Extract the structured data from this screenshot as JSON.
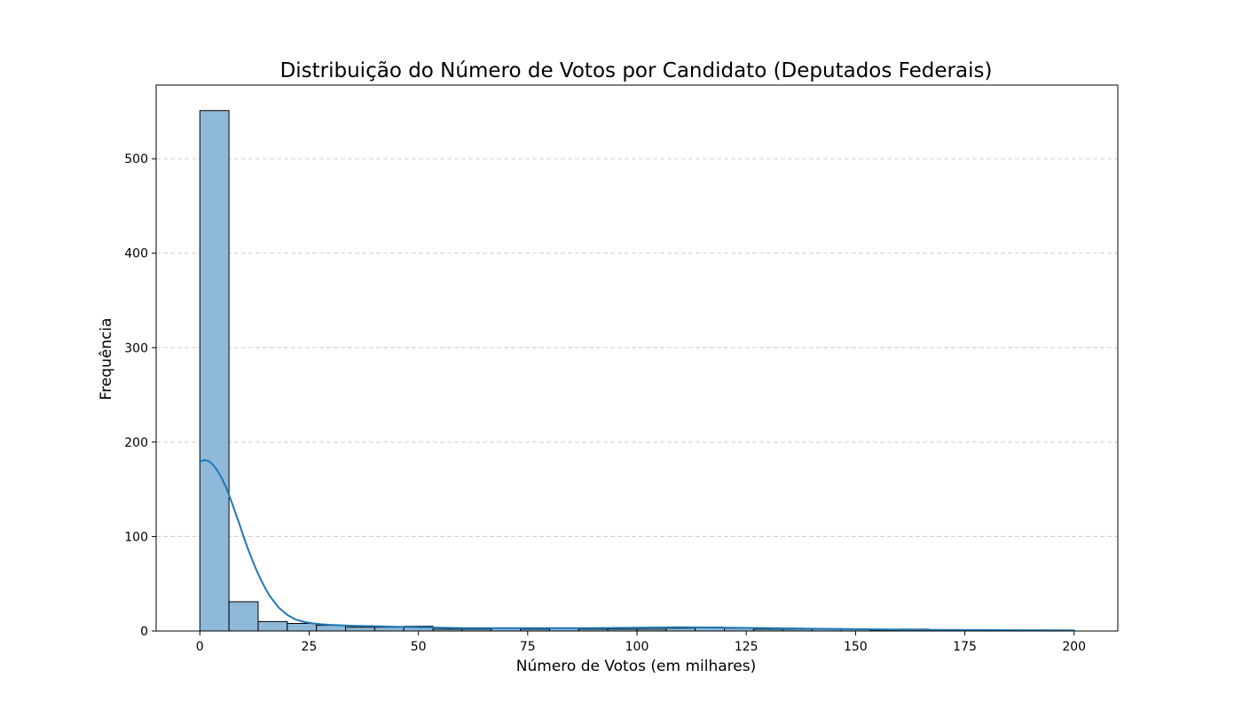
{
  "chart_data": {
    "type": "bar",
    "subtype": "histogram_with_kde",
    "title": "Distribuição do Número de Votos por Candidato (Deputados Federais)",
    "xlabel": "Número de Votos (em milhares)",
    "ylabel": "Frequência",
    "xlim": [
      -10,
      210
    ],
    "ylim": [
      0,
      578
    ],
    "x_ticks": [
      0,
      25,
      50,
      75,
      100,
      125,
      150,
      175,
      200
    ],
    "x_tick_labels": [
      "0",
      "25",
      "50",
      "75",
      "100",
      "125",
      "150",
      "175",
      "200"
    ],
    "y_ticks": [
      0,
      100,
      200,
      300,
      400,
      500
    ],
    "y_tick_labels": [
      "0",
      "100",
      "200",
      "300",
      "400",
      "500"
    ],
    "grid": "y-dashed",
    "bin_edges": [
      0,
      6.667,
      13.333,
      20,
      26.667,
      33.333,
      40,
      46.667,
      53.333,
      60,
      66.667,
      73.333,
      80,
      86.667,
      93.333,
      100,
      106.667,
      113.333,
      120,
      126.667,
      133.333,
      140,
      146.667,
      153.333,
      160,
      166.667,
      173.333,
      180,
      186.667,
      193.333,
      200
    ],
    "counts": [
      551,
      31,
      10,
      8,
      6,
      4,
      4,
      5,
      2,
      2,
      3,
      2,
      3,
      2,
      2,
      2,
      3,
      4,
      3,
      2,
      2,
      2,
      2,
      1,
      2,
      1,
      1,
      1,
      0,
      1
    ],
    "kde": {
      "x": [
        0,
        1,
        2,
        3,
        4,
        5,
        6,
        7,
        8,
        9,
        10,
        11,
        12,
        13,
        14,
        15,
        16,
        18,
        20,
        22,
        24,
        26,
        28,
        30,
        35,
        40,
        45,
        50,
        55,
        60,
        70,
        80,
        90,
        100,
        110,
        120,
        130,
        140,
        150,
        160,
        170,
        180,
        190,
        200
      ],
      "y": [
        179,
        181,
        180,
        176,
        170,
        162,
        152,
        140,
        127,
        114,
        100,
        87,
        75,
        64,
        54,
        45,
        37,
        25,
        17,
        12,
        9.5,
        8,
        7,
        6.5,
        5.5,
        5,
        4.5,
        4,
        3.5,
        3,
        3,
        3,
        3,
        3.5,
        4,
        3.5,
        3,
        2.5,
        2,
        1.5,
        1.2,
        1,
        0.8,
        0.6
      ]
    },
    "colors": {
      "bar_fill": "#8fb9d9",
      "bar_edge": "#000000",
      "kde_line": "#1f77b4",
      "grid": "#cccccc"
    }
  }
}
